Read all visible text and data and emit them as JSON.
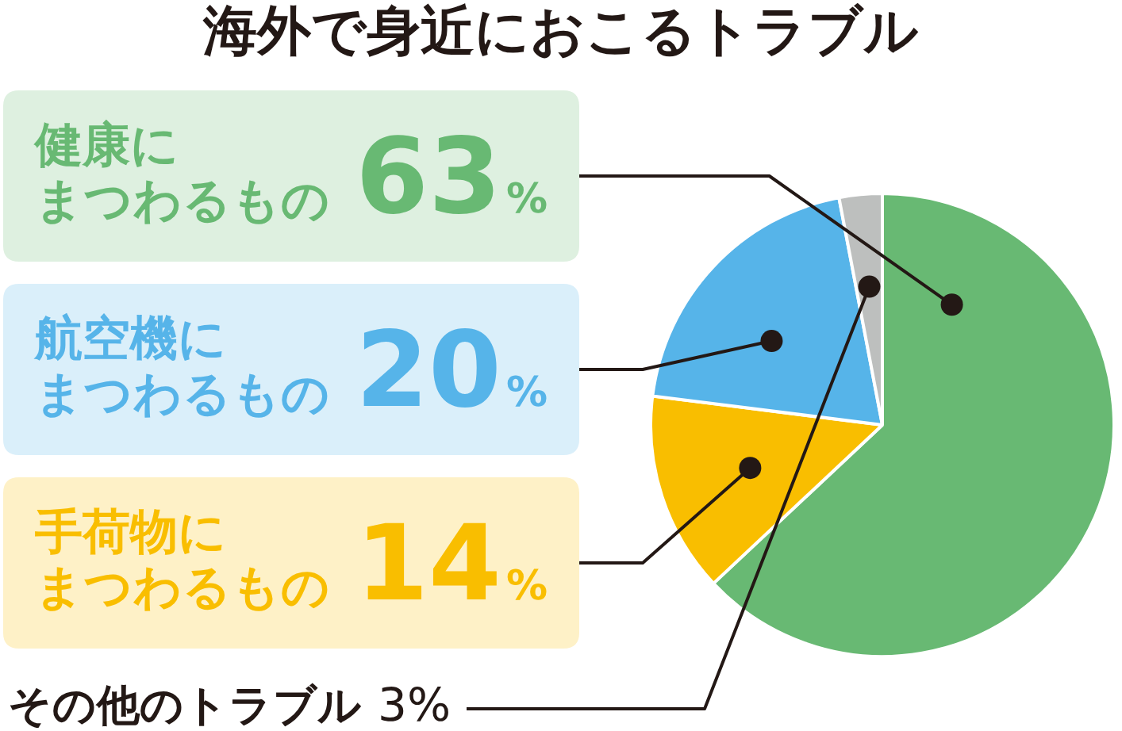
{
  "chart_data": {
    "type": "pie",
    "title": "海外で身近におこるトラブル",
    "categories": [
      "健康にまつわるもの",
      "手荷物にまつわるもの",
      "航空機にまつわるもの",
      "その他のトラブル"
    ],
    "values": [
      63,
      14,
      20,
      3
    ],
    "colors": [
      "#68b973",
      "#f9be00",
      "#56b4e9",
      "#bdbfbe"
    ],
    "value_labels": [
      "63%",
      "14%",
      "20%",
      "3%"
    ]
  }
}
